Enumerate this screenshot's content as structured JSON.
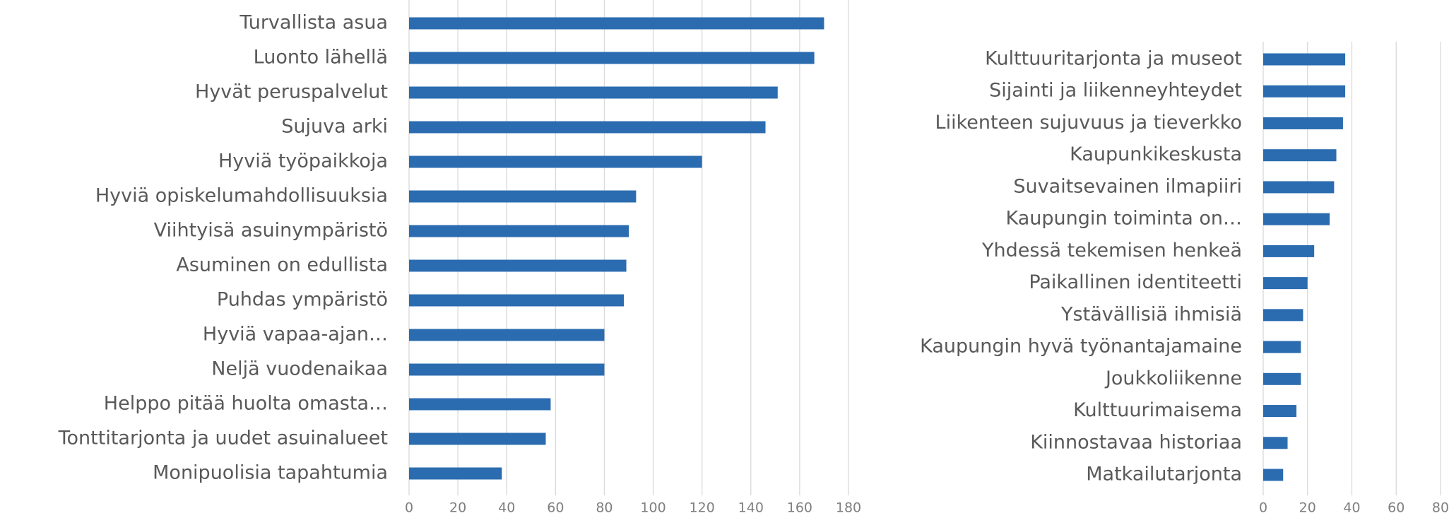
{
  "chart_data": [
    {
      "type": "bar",
      "orientation": "horizontal",
      "color": "#2b6cb0",
      "grid": true,
      "categories": [
        "Turvallista asua",
        "Luonto lähellä",
        "Hyvät peruspalvelut",
        "Sujuva arki",
        "Hyviä työpaikkoja",
        "Hyviä opiskelumahdollisuuksia",
        "Viihtyisä asuinympäristö",
        "Asuminen on edullista",
        "Puhdas ympäristö",
        "Hyviä vapaa-ajan…",
        "Neljä vuodenaikaa",
        "Helppo pitää huolta omasta…",
        "Tonttitarjonta ja uudet asuinalueet",
        "Monipuolisia tapahtumia"
      ],
      "values": [
        170,
        166,
        151,
        146,
        120,
        93,
        90,
        89,
        88,
        80,
        80,
        58,
        56,
        38
      ],
      "xlim": [
        0,
        180
      ],
      "xticks": [
        0,
        20,
        40,
        60,
        80,
        100,
        120,
        140,
        160,
        180
      ]
    },
    {
      "type": "bar",
      "orientation": "horizontal",
      "color": "#2b6cb0",
      "grid": true,
      "categories": [
        "Kulttuuritarjonta ja museot",
        "Sijainti ja liikenneyhteydet",
        "Liikenteen sujuvuus ja tieverkko",
        "Kaupunkikeskusta",
        "Suvaitsevainen ilmapiiri",
        "Kaupungin toiminta on…",
        "Yhdessä tekemisen henkeä",
        "Paikallinen identiteetti",
        "Ystävällisiä ihmisiä",
        "Kaupungin hyvä työnantajamaine",
        "Joukkoliikenne",
        "Kulttuurimaisema",
        "Kiinnostavaa historiaa",
        "Matkailutarjonta"
      ],
      "values": [
        37,
        37,
        36,
        33,
        32,
        30,
        23,
        20,
        18,
        17,
        17,
        15,
        11,
        9
      ],
      "xlim": [
        0,
        80
      ],
      "xticks": [
        0,
        20,
        40,
        60,
        80
      ]
    }
  ]
}
